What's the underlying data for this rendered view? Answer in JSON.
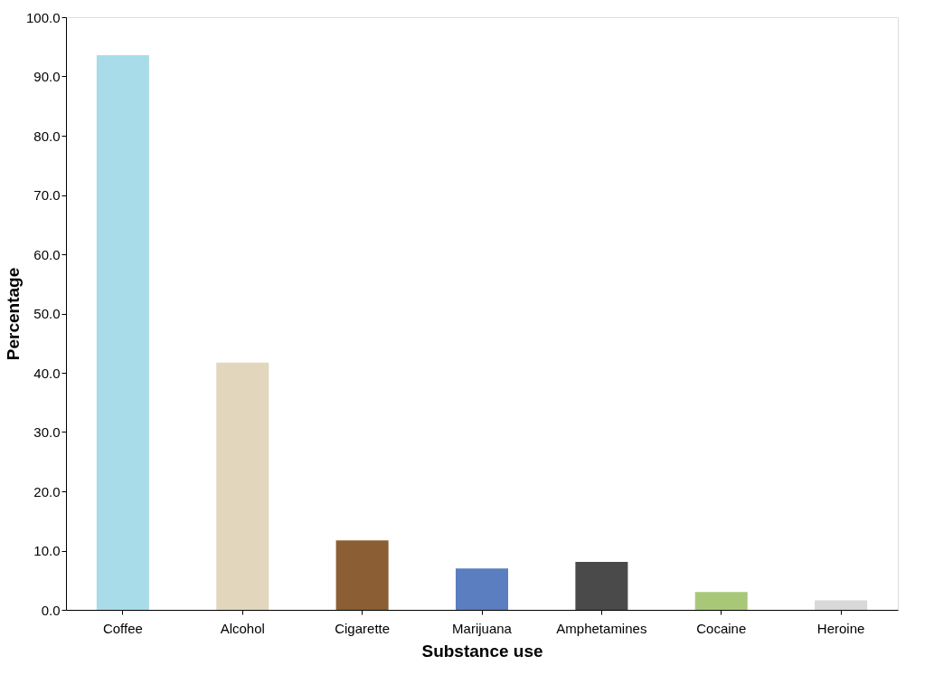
{
  "chart_data": {
    "type": "bar",
    "xlabel": "Substance use",
    "ylabel": "Percentage",
    "categories": [
      "Coffee",
      "Alcohol",
      "Cigarette",
      "Marijuana",
      "Amphetamines",
      "Cocaine",
      "Heroine"
    ],
    "values": [
      93.6,
      41.7,
      11.7,
      7.0,
      8.1,
      3.0,
      1.6
    ],
    "colors": [
      "#a8dce8",
      "#e2d6bc",
      "#8b5e34",
      "#5a7ec0",
      "#4a4a4a",
      "#a8c878",
      "#d8d8d8"
    ],
    "ylim": [
      0,
      100
    ],
    "yticks": [
      {
        "value": 0,
        "label": "0.0"
      },
      {
        "value": 10,
        "label": "10.0"
      },
      {
        "value": 20,
        "label": "20.0"
      },
      {
        "value": 30,
        "label": "30.0"
      },
      {
        "value": 40,
        "label": "40.0"
      },
      {
        "value": 50,
        "label": "50.0"
      },
      {
        "value": 60,
        "label": "60.0"
      },
      {
        "value": 70,
        "label": "70.0"
      },
      {
        "value": 80,
        "label": "80.0"
      },
      {
        "value": 90,
        "label": "90.0"
      },
      {
        "value": 100,
        "label": "100.0"
      }
    ],
    "grid": false
  }
}
